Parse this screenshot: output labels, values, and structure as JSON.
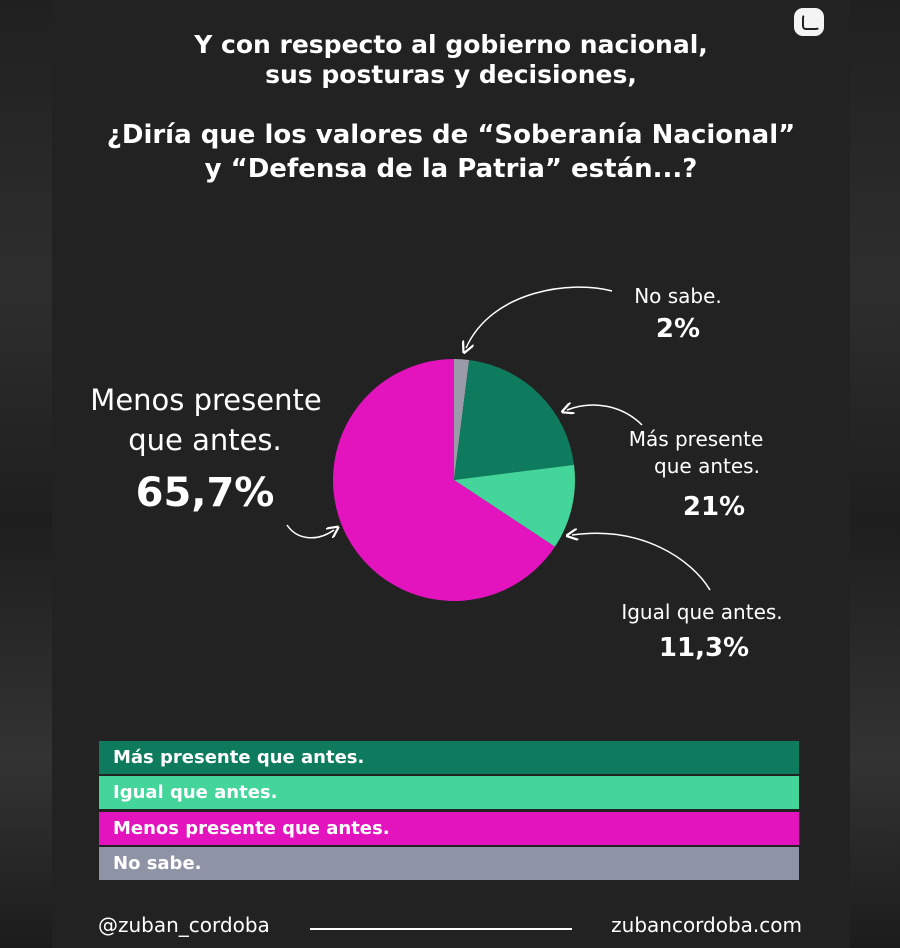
{
  "title": {
    "line1": "Y con respecto al gobierno nacional,",
    "line2": "sus posturas y decisiones,",
    "line3": "¿Diría que los valores de  “Soberanía Nacional”",
    "line4": "y “Defensa de la Patria” están...?"
  },
  "chart_data": {
    "type": "pie",
    "slices": [
      {
        "name": "No sabe.",
        "value": 2,
        "label": "2%",
        "color": "#9a9aa8"
      },
      {
        "name": "Más presente que antes.",
        "value": 21,
        "label": "21%",
        "color": "#0e7a5e"
      },
      {
        "name": "Igual que antes.",
        "value": 11.3,
        "label": "11,3%",
        "color": "#44d59a"
      },
      {
        "name": "Menos presente que antes.",
        "value": 65.7,
        "label": "65,7%",
        "color": "#e313be"
      }
    ]
  },
  "callouts": {
    "no_sabe": {
      "line1": "No sabe.",
      "pct": "2%"
    },
    "mas": {
      "line1": "Más presente",
      "line2": "que antes.",
      "pct": "21%"
    },
    "igual": {
      "line1": "Igual que antes.",
      "pct": "11,3%"
    },
    "menos": {
      "line1": "Menos presente",
      "line2": "que antes.",
      "pct": "65,7%"
    }
  },
  "legend": [
    {
      "label": "Más presente que antes.",
      "color": "#0e7a5e"
    },
    {
      "label": "Igual que antes.",
      "color": "#44d59a"
    },
    {
      "label": "Menos presente que antes.",
      "color": "#e313be"
    },
    {
      "label": "No sabe.",
      "color": "#8f93a6"
    }
  ],
  "footer": {
    "handle": "@zuban_cordoba",
    "site": "zubancordoba.com"
  }
}
